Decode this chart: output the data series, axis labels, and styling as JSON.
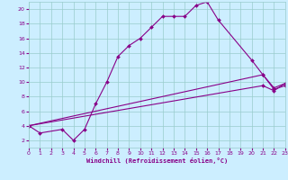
{
  "title": "",
  "xlabel": "Windchill (Refroidissement éolien,°C)",
  "xlim": [
    0,
    23
  ],
  "ylim": [
    1,
    21
  ],
  "yticks": [
    2,
    4,
    6,
    8,
    10,
    12,
    14,
    16,
    18,
    20
  ],
  "xticks": [
    0,
    1,
    2,
    3,
    4,
    5,
    6,
    7,
    8,
    9,
    10,
    11,
    12,
    13,
    14,
    15,
    16,
    17,
    18,
    19,
    20,
    21,
    22,
    23
  ],
  "bg_color": "#cceeff",
  "line_color": "#880088",
  "grid_color": "#99cccc",
  "series": [
    {
      "x": [
        0,
        1,
        3,
        4,
        5,
        6,
        7,
        8,
        9,
        10,
        11,
        12,
        13,
        14,
        15,
        16,
        17,
        20,
        21,
        22,
        23
      ],
      "y": [
        4,
        3,
        3.5,
        2,
        3.5,
        7,
        10,
        13.5,
        15,
        16,
        17.5,
        19,
        19,
        19,
        20.5,
        21,
        18.5,
        13,
        11,
        9,
        9.5
      ]
    },
    {
      "x": [
        0,
        21,
        22,
        23
      ],
      "y": [
        4,
        11,
        9.2,
        9.8
      ]
    },
    {
      "x": [
        0,
        21,
        22,
        23
      ],
      "y": [
        4,
        9.5,
        8.8,
        9.8
      ]
    }
  ]
}
